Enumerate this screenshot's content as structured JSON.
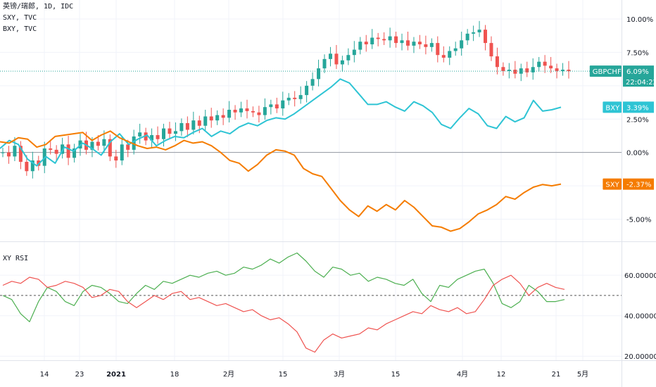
{
  "legend": {
    "main": "英镑/瑞郎, 1D, IDC",
    "sxy": "SXY, TVC",
    "bxy": "BXY, TVC"
  },
  "rsi_title": "XY RSI",
  "colors": {
    "up": "#26a69a",
    "down": "#ef5350",
    "bxy": "#2ec4d4",
    "sxy": "#f57c00",
    "rsi_green": "#4caf50",
    "rsi_red": "#ef5350",
    "axis_text": "#131722",
    "grid": "#f0f3fa",
    "zero_line": "#9598a1"
  },
  "x_axis_labels": [
    "14",
    "23",
    "2021",
    "18",
    "2月",
    "15",
    "3月",
    "15",
    "4月",
    "12",
    "21",
    "5月"
  ],
  "price_axis": {
    "ticks": [
      "10.00%",
      "7.50%",
      "2.50%",
      "0.00%",
      "-5.00%"
    ],
    "ylim": [
      -6.5,
      11
    ]
  },
  "tags": {
    "gbpchf": {
      "label": "GBPCHF",
      "value": "6.09%",
      "time": "22:04:22"
    },
    "bxy": {
      "label": "BXY",
      "value": "3.39%"
    },
    "sxy": {
      "label": "SXY",
      "value": "-2.37%"
    }
  },
  "rsi_axis": {
    "ticks": [
      "60.000000",
      "40.000000",
      "20.000000"
    ],
    "ylim": [
      18,
      75
    ],
    "midline": 50
  },
  "chart_data": [
    {
      "type": "line",
      "title": "英镑/瑞郎, 1D, IDC",
      "x_labels": [
        "14",
        "23",
        "2021",
        "18",
        "2月",
        "15",
        "3月",
        "15",
        "4月",
        "12",
        "21",
        "5月"
      ],
      "ylabel": "",
      "y_unit": "%",
      "ylim": [
        -6.5,
        11
      ],
      "candles_close": [
        0.0,
        -0.3,
        0.5,
        -0.7,
        -1.4,
        -0.6,
        -1.0,
        0.3,
        0.2,
        -0.1,
        0.6,
        -0.4,
        0.3,
        0.9,
        0.2,
        0.8,
        0.5,
        1.0,
        -0.3,
        -0.6,
        0.6,
        0.2,
        1.2,
        1.5,
        0.9,
        1.3,
        1.0,
        1.8,
        1.4,
        1.6,
        2.2,
        1.7,
        2.4,
        2.0,
        2.7,
        2.4,
        2.8,
        2.6,
        3.2,
        3.0,
        3.3,
        3.1,
        3.0,
        2.8,
        3.4,
        3.6,
        3.3,
        3.9,
        4.1,
        4.0,
        4.3,
        5.0,
        5.5,
        6.3,
        7.0,
        7.4,
        6.6,
        6.9,
        7.3,
        7.7,
        8.3,
        8.1,
        8.6,
        8.5,
        8.4,
        8.7,
        8.2,
        8.4,
        8.0,
        8.3,
        8.1,
        7.9,
        8.2,
        7.3,
        7.1,
        7.6,
        7.8,
        8.4,
        8.9,
        9.0,
        9.2,
        8.2,
        7.2,
        6.4,
        6.1,
        6.2,
        5.9,
        6.3,
        6.0,
        6.4,
        6.8,
        6.5,
        6.3,
        6.1,
        6.2,
        6.09
      ],
      "series": [
        {
          "name": "BXY",
          "values": [
            0.3,
            0.9,
            0.6,
            -0.5,
            -1.0,
            -0.3,
            -0.8,
            0.4,
            0.1,
            0.7,
            0.3,
            -0.2,
            0.8,
            1.4,
            0.6,
            1.0,
            1.3,
            0.5,
            0.9,
            1.2,
            1.1,
            1.5,
            1.8,
            1.2,
            1.6,
            1.4,
            1.9,
            2.2,
            2.0,
            2.4,
            2.6,
            2.5,
            2.9,
            3.4,
            3.9,
            4.4,
            4.9,
            5.5,
            5.2,
            4.4,
            3.6,
            3.6,
            3.8,
            3.4,
            3.1,
            3.8,
            3.5,
            3.0,
            2.1,
            1.8,
            2.6,
            3.3,
            2.9,
            2.0,
            1.8,
            2.7,
            2.3,
            2.6,
            3.9,
            3.1,
            3.2,
            3.39
          ]
        },
        {
          "name": "SXY",
          "values": [
            0.8,
            0.7,
            1.1,
            1.0,
            0.4,
            0.6,
            1.2,
            1.3,
            1.4,
            1.5,
            0.9,
            1.3,
            1.6,
            1.1,
            0.8,
            0.5,
            0.3,
            0.4,
            0.2,
            0.5,
            0.9,
            0.7,
            0.8,
            0.5,
            0.0,
            -0.6,
            -0.8,
            -1.4,
            -0.9,
            -0.2,
            0.2,
            0.1,
            -0.2,
            -1.2,
            -1.6,
            -1.8,
            -2.7,
            -3.6,
            -4.3,
            -4.8,
            -4.0,
            -4.4,
            -3.9,
            -4.3,
            -3.6,
            -4.1,
            -4.8,
            -5.5,
            -5.6,
            -5.9,
            -5.7,
            -5.2,
            -4.6,
            -4.3,
            -3.9,
            -3.3,
            -3.5,
            -3.0,
            -2.6,
            -2.4,
            -2.5,
            -2.37
          ]
        }
      ]
    },
    {
      "type": "line",
      "title": "XY RSI",
      "x_labels": [
        "14",
        "23",
        "2021",
        "18",
        "2月",
        "15",
        "3月",
        "15",
        "4月",
        "12",
        "21",
        "5月"
      ],
      "ylim": [
        18,
        75
      ],
      "series": [
        {
          "name": "",
          "values": [
            50,
            48,
            41,
            37,
            47,
            54,
            52,
            47,
            45,
            52,
            55,
            54,
            51,
            47,
            46,
            51,
            55,
            53,
            57,
            56,
            58,
            60,
            59,
            61,
            62,
            60,
            61,
            64,
            63,
            65,
            68,
            66,
            69,
            71,
            67,
            62,
            59,
            64,
            63,
            60,
            61,
            57,
            59,
            58,
            56,
            55,
            58,
            51,
            47,
            55,
            54,
            58,
            60,
            62,
            63,
            56,
            46,
            44,
            47,
            55,
            52,
            47,
            47,
            48
          ]
        },
        {
          "name": "",
          "values": [
            55,
            57,
            56,
            59,
            58,
            54,
            55,
            57,
            56,
            54,
            49,
            50,
            53,
            52,
            47,
            44,
            47,
            50,
            48,
            51,
            52,
            48,
            49,
            47,
            45,
            46,
            44,
            42,
            43,
            40,
            38,
            39,
            36,
            32,
            24,
            22,
            28,
            31,
            29,
            30,
            31,
            34,
            33,
            36,
            38,
            40,
            42,
            41,
            45,
            43,
            42,
            44,
            41,
            42,
            48,
            55,
            58,
            60,
            56,
            50,
            54,
            56,
            54,
            53
          ]
        }
      ]
    }
  ]
}
